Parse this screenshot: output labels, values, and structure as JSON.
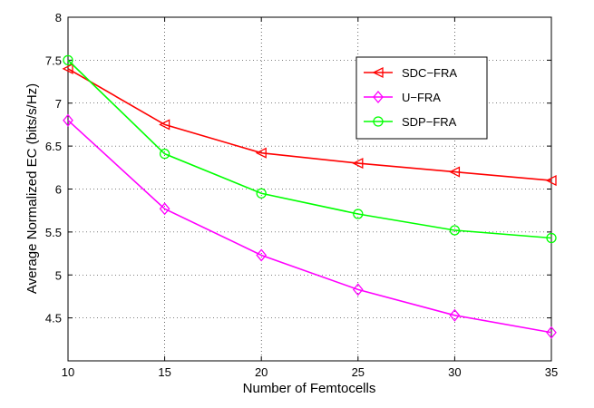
{
  "chart_data": {
    "type": "line",
    "xlabel": "Number of Femtocells",
    "ylabel": "Average Normalized EC (bits/s/Hz)",
    "x": [
      10,
      15,
      20,
      25,
      30,
      35
    ],
    "xlim": [
      10,
      35
    ],
    "ylim": [
      4,
      8
    ],
    "xticks": [
      "10",
      "15",
      "20",
      "25",
      "30",
      "35"
    ],
    "yticks": [
      "4.5",
      "5",
      "5.5",
      "6",
      "6.5",
      "7",
      "7.5",
      "8"
    ],
    "grid": true,
    "legend_position": "top-right",
    "series": [
      {
        "name": "SDC−FRA",
        "color": "#ff0000",
        "marker": "triangle-left",
        "values": [
          7.4,
          6.75,
          6.42,
          6.3,
          6.2,
          6.1
        ]
      },
      {
        "name": "U−FRA",
        "color": "#ff00ff",
        "marker": "diamond",
        "values": [
          6.8,
          5.77,
          5.23,
          4.83,
          4.53,
          4.33
        ]
      },
      {
        "name": "SDP−FRA",
        "color": "#00ff00",
        "marker": "circle",
        "values": [
          7.5,
          6.41,
          5.95,
          5.71,
          5.52,
          5.43
        ]
      }
    ]
  }
}
